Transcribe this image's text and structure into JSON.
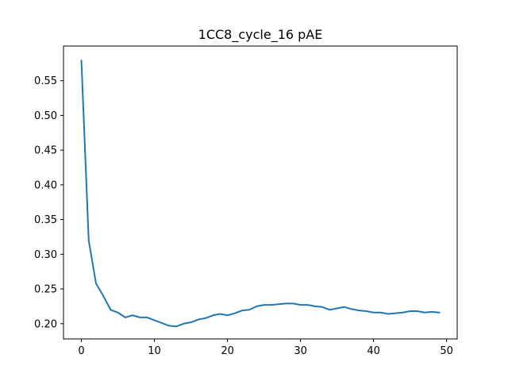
{
  "chart_data": {
    "type": "line",
    "title": "1CC8_cycle_16 pAE",
    "xlabel": "",
    "ylabel": "",
    "xlim": [
      -2.45,
      51.45
    ],
    "ylim": [
      0.178,
      0.6
    ],
    "grid": false,
    "x_ticks": [
      0,
      10,
      20,
      30,
      40,
      50
    ],
    "y_ticks": [
      0.2,
      0.25,
      0.3,
      0.35,
      0.4,
      0.45,
      0.5,
      0.55
    ],
    "x_tick_labels": [
      "0",
      "10",
      "20",
      "30",
      "40",
      "50"
    ],
    "y_tick_labels": [
      "0.20",
      "0.25",
      "0.30",
      "0.35",
      "0.40",
      "0.45",
      "0.50",
      "0.55"
    ],
    "series": [
      {
        "color": "#1f77b4",
        "x": [
          0,
          1,
          2,
          3,
          4,
          5,
          6,
          7,
          8,
          9,
          10,
          11,
          12,
          13,
          14,
          15,
          16,
          17,
          18,
          19,
          20,
          21,
          22,
          23,
          24,
          25,
          26,
          27,
          28,
          29,
          30,
          31,
          32,
          33,
          34,
          35,
          36,
          37,
          38,
          39,
          40,
          41,
          42,
          43,
          44,
          45,
          46,
          47,
          48,
          49
        ],
        "values": [
          0.579,
          0.32,
          0.258,
          0.24,
          0.22,
          0.216,
          0.209,
          0.212,
          0.209,
          0.209,
          0.205,
          0.201,
          0.197,
          0.196,
          0.2,
          0.202,
          0.206,
          0.208,
          0.212,
          0.214,
          0.212,
          0.215,
          0.219,
          0.22,
          0.225,
          0.227,
          0.227,
          0.228,
          0.229,
          0.229,
          0.227,
          0.227,
          0.225,
          0.224,
          0.22,
          0.222,
          0.224,
          0.221,
          0.219,
          0.218,
          0.216,
          0.216,
          0.214,
          0.215,
          0.216,
          0.218,
          0.218,
          0.216,
          0.217,
          0.216
        ]
      }
    ]
  }
}
